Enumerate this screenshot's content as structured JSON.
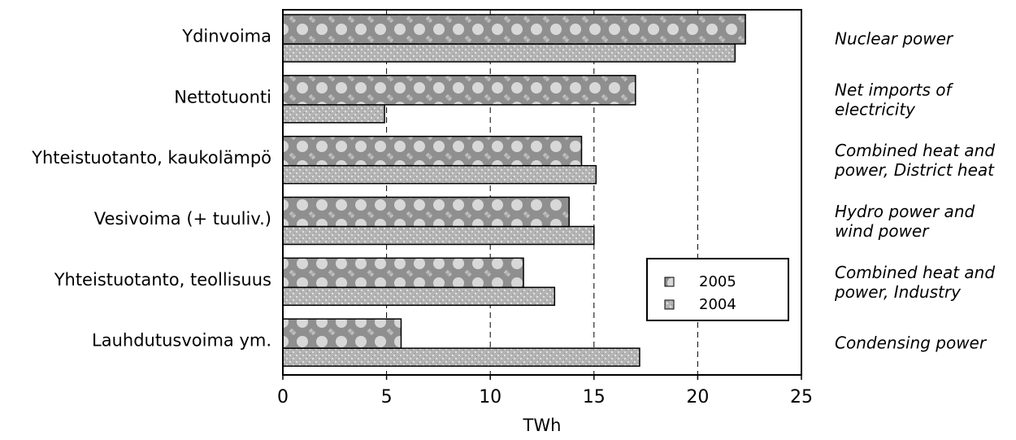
{
  "chart_data": {
    "type": "bar",
    "orientation": "horizontal",
    "categories": [
      "Ydinvoima",
      "Nettotuonti",
      "Yhteistuotanto, kaukolämpö",
      "Vesivoima (+ tuuliv.)",
      "Yhteistuotanto, teollisuus",
      "Lauhdutusvoima ym."
    ],
    "categories_en": [
      [
        "Nuclear power"
      ],
      [
        "Net imports of",
        "electricity"
      ],
      [
        "Combined heat and",
        "power, District heat"
      ],
      [
        "Hydro power and",
        "wind power"
      ],
      [
        "Combined heat and",
        "power, Industry"
      ],
      [
        "Condensing power"
      ]
    ],
    "series": [
      {
        "name": "2005",
        "values": [
          22.3,
          17.0,
          14.4,
          13.8,
          11.6,
          5.7
        ]
      },
      {
        "name": "2004",
        "values": [
          21.8,
          4.9,
          15.1,
          15.0,
          13.1,
          17.2
        ]
      }
    ],
    "xlabel": "TWh",
    "xlim": [
      0,
      25
    ],
    "xticks": [
      0,
      5,
      10,
      15,
      20,
      25
    ],
    "grid": "vertical dashed",
    "legend_position": "lower-right",
    "colors": {
      "2005": "#9a9a9a",
      "2004": "#b0b0b0",
      "frame": "#000000"
    }
  }
}
